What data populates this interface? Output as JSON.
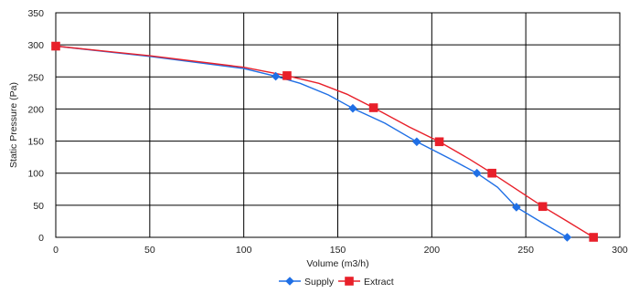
{
  "chart_data": {
    "type": "line",
    "title": "",
    "xlabel": "Volume (m3/h)",
    "ylabel": "Static Pressure (Pa)",
    "xlim": [
      0,
      300
    ],
    "ylim": [
      0,
      350
    ],
    "xticks": [
      0,
      50,
      100,
      150,
      200,
      250,
      300
    ],
    "yticks": [
      0,
      50,
      100,
      150,
      200,
      250,
      300,
      350
    ],
    "grid": true,
    "legend_position": "bottom",
    "series": [
      {
        "name": "Supply",
        "color": "#1f6fe5",
        "marker": "diamond",
        "markers": [
          [
            0,
            298
          ],
          [
            117,
            251
          ],
          [
            158,
            201
          ],
          [
            192,
            149
          ],
          [
            224,
            100
          ],
          [
            245,
            47
          ],
          [
            272,
            0
          ]
        ],
        "line": [
          [
            0,
            298
          ],
          [
            50,
            282
          ],
          [
            100,
            263
          ],
          [
            117,
            251
          ],
          [
            130,
            240
          ],
          [
            145,
            222
          ],
          [
            158,
            201
          ],
          [
            175,
            178
          ],
          [
            192,
            149
          ],
          [
            210,
            122
          ],
          [
            224,
            100
          ],
          [
            235,
            78
          ],
          [
            245,
            47
          ],
          [
            258,
            24
          ],
          [
            272,
            0
          ]
        ]
      },
      {
        "name": "Extract",
        "color": "#e8202a",
        "marker": "square",
        "markers": [
          [
            0,
            298
          ],
          [
            123,
            252
          ],
          [
            169,
            202
          ],
          [
            204,
            149
          ],
          [
            232,
            100
          ],
          [
            259,
            48
          ],
          [
            286,
            0
          ]
        ],
        "line": [
          [
            0,
            298
          ],
          [
            50,
            283
          ],
          [
            100,
            265
          ],
          [
            123,
            252
          ],
          [
            140,
            240
          ],
          [
            155,
            223
          ],
          [
            169,
            202
          ],
          [
            188,
            172
          ],
          [
            204,
            149
          ],
          [
            220,
            122
          ],
          [
            232,
            100
          ],
          [
            246,
            73
          ],
          [
            259,
            48
          ],
          [
            272,
            25
          ],
          [
            286,
            0
          ]
        ]
      }
    ]
  }
}
